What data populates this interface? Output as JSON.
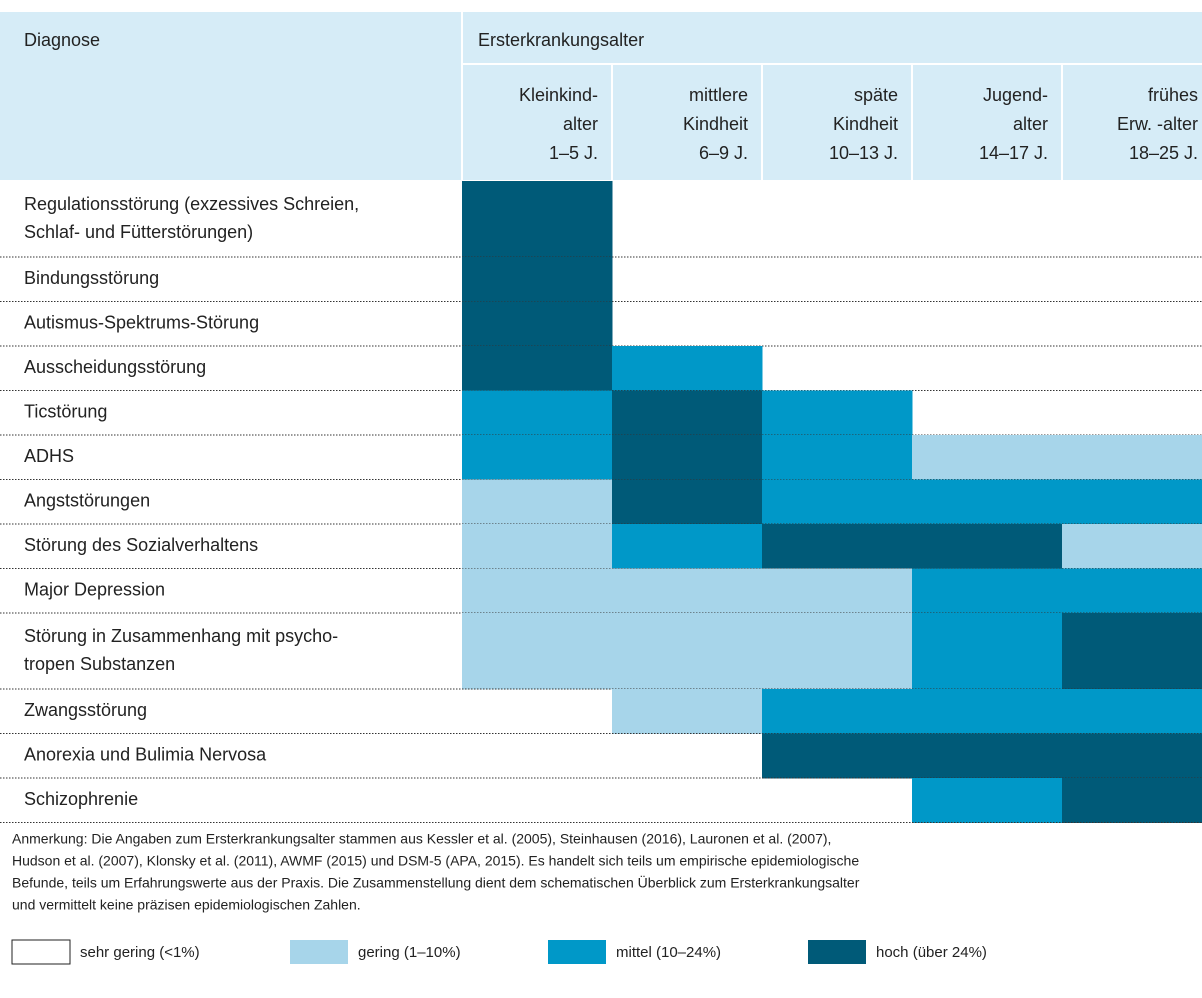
{
  "header": {
    "diagnosis": "Diagnose",
    "age_group": "Ersterkrankungsalter"
  },
  "columns": [
    [
      "Kleinkind-",
      "alter",
      "1–5 J."
    ],
    [
      "mittlere",
      "Kindheit",
      "6–9 J."
    ],
    [
      "späte",
      "Kindheit",
      "10–13 J."
    ],
    [
      "Jugend-",
      "alter",
      "14–17 J."
    ],
    [
      "frühes",
      "Erw. -alter",
      "18–25 J."
    ]
  ],
  "rows": [
    {
      "label": [
        "Regulationsstörung (exzessives Schreien,",
        "Schlaf- und Fütterstörungen)"
      ],
      "levels": [
        3,
        0,
        0,
        0,
        0
      ]
    },
    {
      "label": [
        "Bindungsstörung"
      ],
      "levels": [
        3,
        0,
        0,
        0,
        0
      ]
    },
    {
      "label": [
        "Autismus-Spektrums-Störung"
      ],
      "levels": [
        3,
        0,
        0,
        0,
        0
      ]
    },
    {
      "label": [
        "Ausscheidungsstörung"
      ],
      "levels": [
        3,
        2,
        0,
        0,
        0
      ]
    },
    {
      "label": [
        "Ticstörung"
      ],
      "levels": [
        2,
        3,
        2,
        0,
        0
      ]
    },
    {
      "label": [
        "ADHS"
      ],
      "levels": [
        2,
        3,
        2,
        1,
        1
      ]
    },
    {
      "label": [
        "Angststörungen"
      ],
      "levels": [
        1,
        3,
        2,
        2,
        2
      ]
    },
    {
      "label": [
        "Störung des Sozialverhaltens"
      ],
      "levels": [
        1,
        2,
        3,
        3,
        1
      ]
    },
    {
      "label": [
        "Major Depression"
      ],
      "levels": [
        1,
        1,
        1,
        2,
        2
      ]
    },
    {
      "label": [
        "Störung in Zusammenhang mit psycho-",
        "tropen Substanzen"
      ],
      "levels": [
        1,
        1,
        1,
        2,
        3
      ]
    },
    {
      "label": [
        "Zwangsstörung"
      ],
      "levels": [
        0,
        1,
        2,
        2,
        2
      ]
    },
    {
      "label": [
        "Anorexia und Bulimia Nervosa"
      ],
      "levels": [
        0,
        0,
        3,
        3,
        3
      ]
    },
    {
      "label": [
        "Schizophrenie"
      ],
      "levels": [
        0,
        0,
        0,
        2,
        3
      ]
    }
  ],
  "note": [
    "Anmerkung: Die Angaben zum Ersterkrankungsalter stammen aus Kessler et al. (2005), Steinhausen (2016), Lauronen et al. (2007),",
    "Hudson et al. (2007), Klonsky et al. (2011), AWMF (2015) und DSM-5 (APA, 2015). Es handelt sich teils um empirische epidemiologische",
    "Befunde, teils um Erfahrungswerte aus der Praxis. Die Zusammenstellung dient dem schematischen Überblick zum Ersterkrankungsalter",
    "und vermittelt keine präzisen epidemiologischen Zahlen."
  ],
  "legend": [
    {
      "label": "sehr gering (<1%)",
      "color": "#ffffff"
    },
    {
      "label": "gering (1–10%)",
      "color": "#a7d5ea"
    },
    {
      "label": "mittel (10–24%)",
      "color": "#0098c8"
    },
    {
      "label": "hoch (über 24%)",
      "color": "#005a78"
    }
  ]
}
